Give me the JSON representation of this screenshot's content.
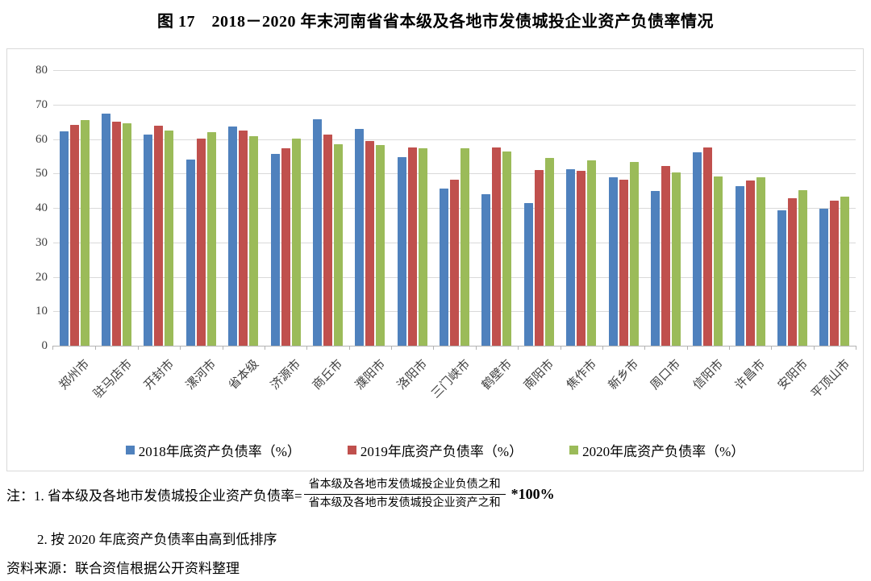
{
  "chart_data": {
    "type": "bar",
    "title": "图 17　2018－2020 年末河南省省本级及各地市发债城投企业资产负债率情况",
    "categories": [
      "郑州市",
      "驻马店市",
      "开封市",
      "漯河市",
      "省本级",
      "济源市",
      "商丘市",
      "濮阳市",
      "洛阳市",
      "三门峡市",
      "鹤壁市",
      "南阳市",
      "焦作市",
      "新乡市",
      "周口市",
      "信阳市",
      "许昌市",
      "安阳市",
      "平顶山市"
    ],
    "series": [
      {
        "name": "2018年底资产负债率（%）",
        "color": "#4F81BD",
        "values": [
          62.3,
          67.3,
          61.2,
          54.0,
          63.7,
          55.6,
          65.8,
          63.0,
          54.8,
          45.6,
          43.9,
          41.5,
          51.3,
          48.9,
          45.0,
          56.2,
          46.4,
          39.3,
          39.8
        ]
      },
      {
        "name": "2019年底资产负债率（%）",
        "color": "#C0504D",
        "values": [
          64.1,
          65.1,
          63.9,
          60.2,
          62.5,
          57.2,
          61.2,
          59.5,
          57.6,
          48.3,
          57.5,
          51.1,
          50.7,
          48.1,
          52.2,
          57.5,
          48.0,
          42.8,
          42.2
        ]
      },
      {
        "name": "2020年底资产负债率（%）",
        "color": "#9BBB59",
        "values": [
          65.4,
          64.6,
          62.5,
          62.0,
          60.8,
          60.2,
          58.5,
          58.2,
          57.4,
          57.3,
          56.4,
          54.4,
          53.9,
          53.4,
          50.3,
          49.2,
          48.9,
          45.1,
          43.2
        ]
      }
    ],
    "xlabel": "",
    "ylabel": "",
    "ylim": [
      0,
      80
    ],
    "ytick_interval": 10,
    "grid": true,
    "legend_position": "bottom"
  },
  "notes": {
    "note1_prefix": "注：1. 省本级及各地市发债城投企业资产负债率=",
    "fraction_numerator": "省本级及各地市发债城投企业负债之和",
    "fraction_denominator": "省本级及各地市发债城投企业资产之和",
    "note1_suffix": "*100%",
    "note2": "2. 按 2020 年底资产负债率由高到低排序",
    "source": "资料来源：联合资信根据公开资料整理"
  }
}
